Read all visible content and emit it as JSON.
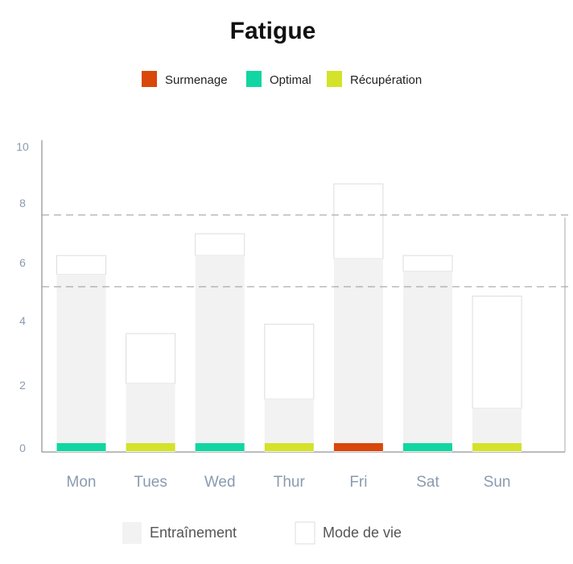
{
  "chart_data": {
    "type": "bar",
    "title": "Fatigue",
    "categories": [
      "Mon",
      "Tues",
      "Wed",
      "Thur",
      "Fri",
      "Sat",
      "Sun"
    ],
    "series": [
      {
        "name": "Entraînement",
        "values": [
          5.7,
          2.2,
          6.3,
          1.7,
          6.2,
          5.8,
          1.4
        ]
      },
      {
        "name": "Mode de vie",
        "values": [
          0.6,
          1.6,
          0.7,
          2.4,
          2.4,
          0.5,
          3.6
        ]
      }
    ],
    "status_legend": [
      {
        "name": "Surmenage",
        "color": "#d9470a"
      },
      {
        "name": "Optimal",
        "color": "#12d6a1"
      },
      {
        "name": "Récupération",
        "color": "#d4e22a"
      }
    ],
    "status_by_day": [
      "Optimal",
      "Récupération",
      "Optimal",
      "Récupération",
      "Surmenage",
      "Optimal",
      "Récupération"
    ],
    "reference_band": [
      5.3,
      7.6
    ],
    "ylim": [
      0,
      10
    ],
    "yticks": [
      "0",
      "2",
      "4",
      "6",
      "8",
      "10"
    ],
    "colors": {
      "entrainement": "#f2f2f2",
      "mode_de_vie": "#ffffff",
      "border": "#dddddd"
    }
  }
}
